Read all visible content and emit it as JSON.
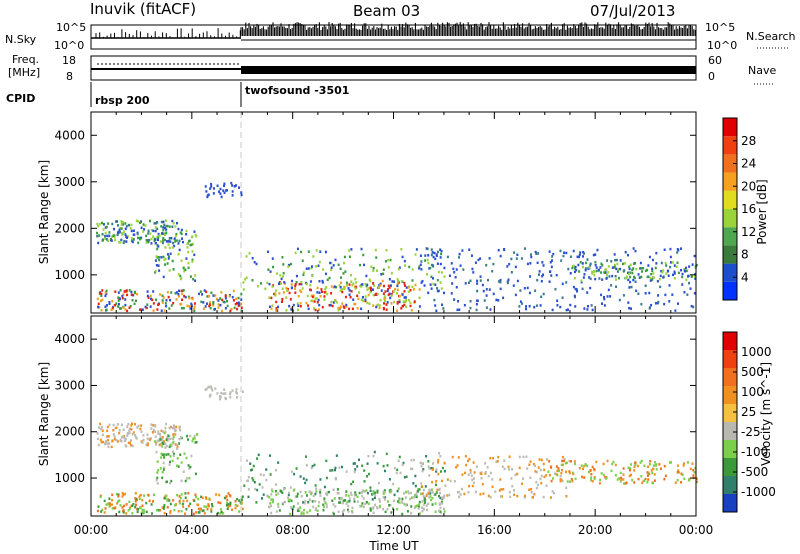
{
  "header": {
    "site": "Inuvik (fitACF)",
    "beam": "Beam 03",
    "date": "07/Jul/2013"
  },
  "top_panels": {
    "nsky_label": "N.Sky",
    "nsky_ticks": [
      "10^5",
      "10^0"
    ],
    "nsearch_label": "N.Search",
    "nsearch_ticks": [
      "10^5",
      "10^0"
    ],
    "freq_label_1": "Freq.",
    "freq_label_2": "[MHz]",
    "freq_ticks": [
      "18",
      "8"
    ],
    "nave_label": "Nave",
    "nave_ticks": [
      "60",
      "0"
    ],
    "cpid_label": "CPID",
    "cpid_1": "rbsp 200",
    "cpid_2": "twofsound -3501"
  },
  "chart_data": [
    {
      "type": "heatmap",
      "title": "",
      "xlabel": "Time UT",
      "ylabel": "Slant Range [km]",
      "x_ticks": [
        "00:00",
        "04:00",
        "08:00",
        "12:00",
        "16:00",
        "20:00",
        "00:00"
      ],
      "xlim_hours": [
        0,
        24
      ],
      "y_ticks": [
        1000,
        2000,
        3000,
        4000
      ],
      "ylim": [
        180,
        4500
      ],
      "colorbar": {
        "label": "Power [dB]",
        "ticks": [
          "4",
          "8",
          "12",
          "16",
          "20",
          "24",
          "28"
        ],
        "range": [
          0,
          30
        ],
        "colors": [
          "#0033ff",
          "#1c4fcc",
          "#3a7a3a",
          "#4fa84f",
          "#9ad43a",
          "#e0dd20",
          "#f5a020",
          "#f07020",
          "#f04010",
          "#e00000"
        ]
      }
    },
    {
      "type": "heatmap",
      "title": "",
      "xlabel": "Time UT",
      "ylabel": "Slant Range [km]",
      "x_ticks": [
        "00:00",
        "04:00",
        "08:00",
        "12:00",
        "16:00",
        "20:00",
        "00:00"
      ],
      "xlim_hours": [
        0,
        24
      ],
      "y_ticks": [
        1000,
        2000,
        3000,
        4000
      ],
      "ylim": [
        180,
        4500
      ],
      "colorbar": {
        "label": "Velocity [m s^-1]",
        "ticks": [
          "1000",
          "500",
          "100",
          "25",
          "-25",
          "-100",
          "-500",
          "-1000"
        ],
        "colors": [
          "#1840c0",
          "#2f7f6a",
          "#3a9a3a",
          "#7ad04a",
          "#b8b8b0",
          "#f5c040",
          "#f09020",
          "#f07020",
          "#f04010",
          "#e00000"
        ]
      }
    }
  ],
  "colors": {
    "power_blue": "#2a4fd0",
    "power_green": "#3a9a40",
    "power_red": "#e82010",
    "vel_grey": "#bcbcb4",
    "vel_orange": "#f09020",
    "vel_green": "#3a9a3a"
  }
}
